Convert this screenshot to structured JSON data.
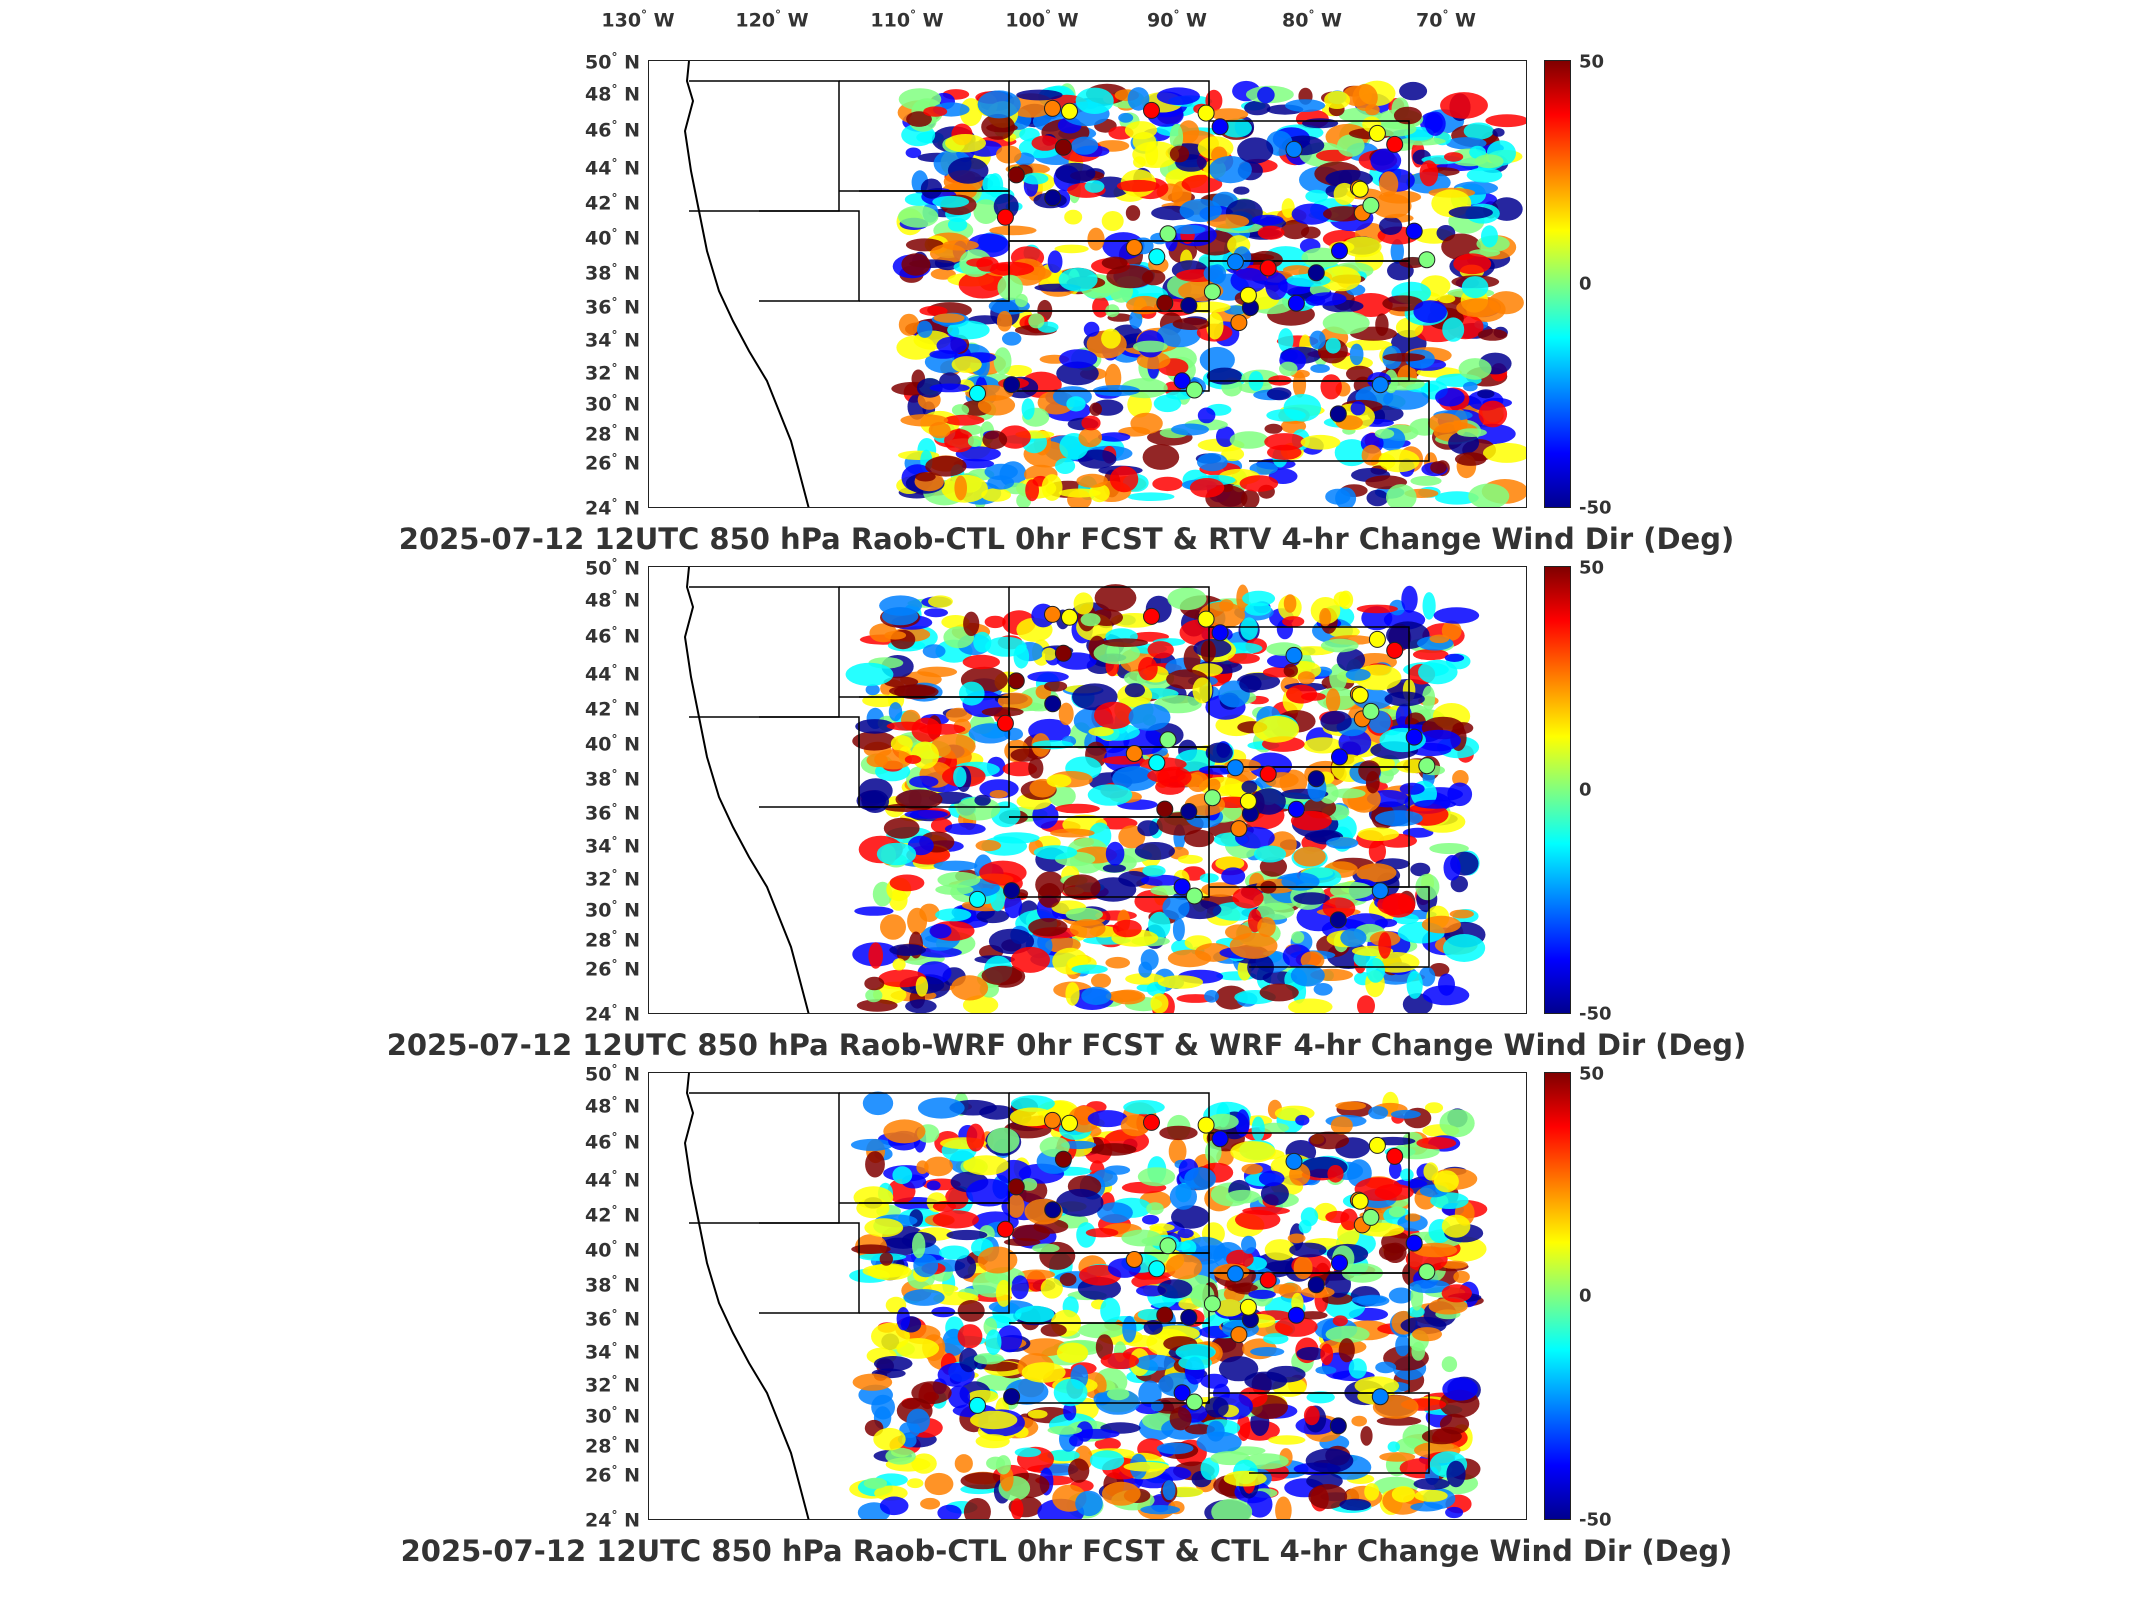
{
  "longitude_labels": [
    "130",
    "120",
    "110",
    "100",
    "90",
    "80",
    "70"
  ],
  "longitude_suffix": "W",
  "latitude_labels": [
    "50",
    "48",
    "46",
    "44",
    "42",
    "40",
    "38",
    "36",
    "34",
    "32",
    "30",
    "28",
    "26",
    "24"
  ],
  "latitude_suffix": "N",
  "colorbar": {
    "max_label": "50",
    "mid_label": "0",
    "min_label": "-50",
    "colormap": [
      "#00008f",
      "#0000ff",
      "#0080ff",
      "#00ffff",
      "#80ff80",
      "#ffff00",
      "#ff8000",
      "#ff0000",
      "#800000"
    ]
  },
  "panels": [
    {
      "title": "2025-07-12 12UTC 850 hPa Raob-CTL 0hr FCST & RTV 4-hr Change Wind Dir (Deg)"
    },
    {
      "title": "2025-07-12 12UTC 850 hPa Raob-WRF 0hr FCST & WRF 4-hr Change Wind Dir (Deg)"
    },
    {
      "title": "2025-07-12 12UTC 850 hPa Raob-CTL 0hr FCST & CTL 4-hr Change Wind Dir (Deg)"
    }
  ]
}
